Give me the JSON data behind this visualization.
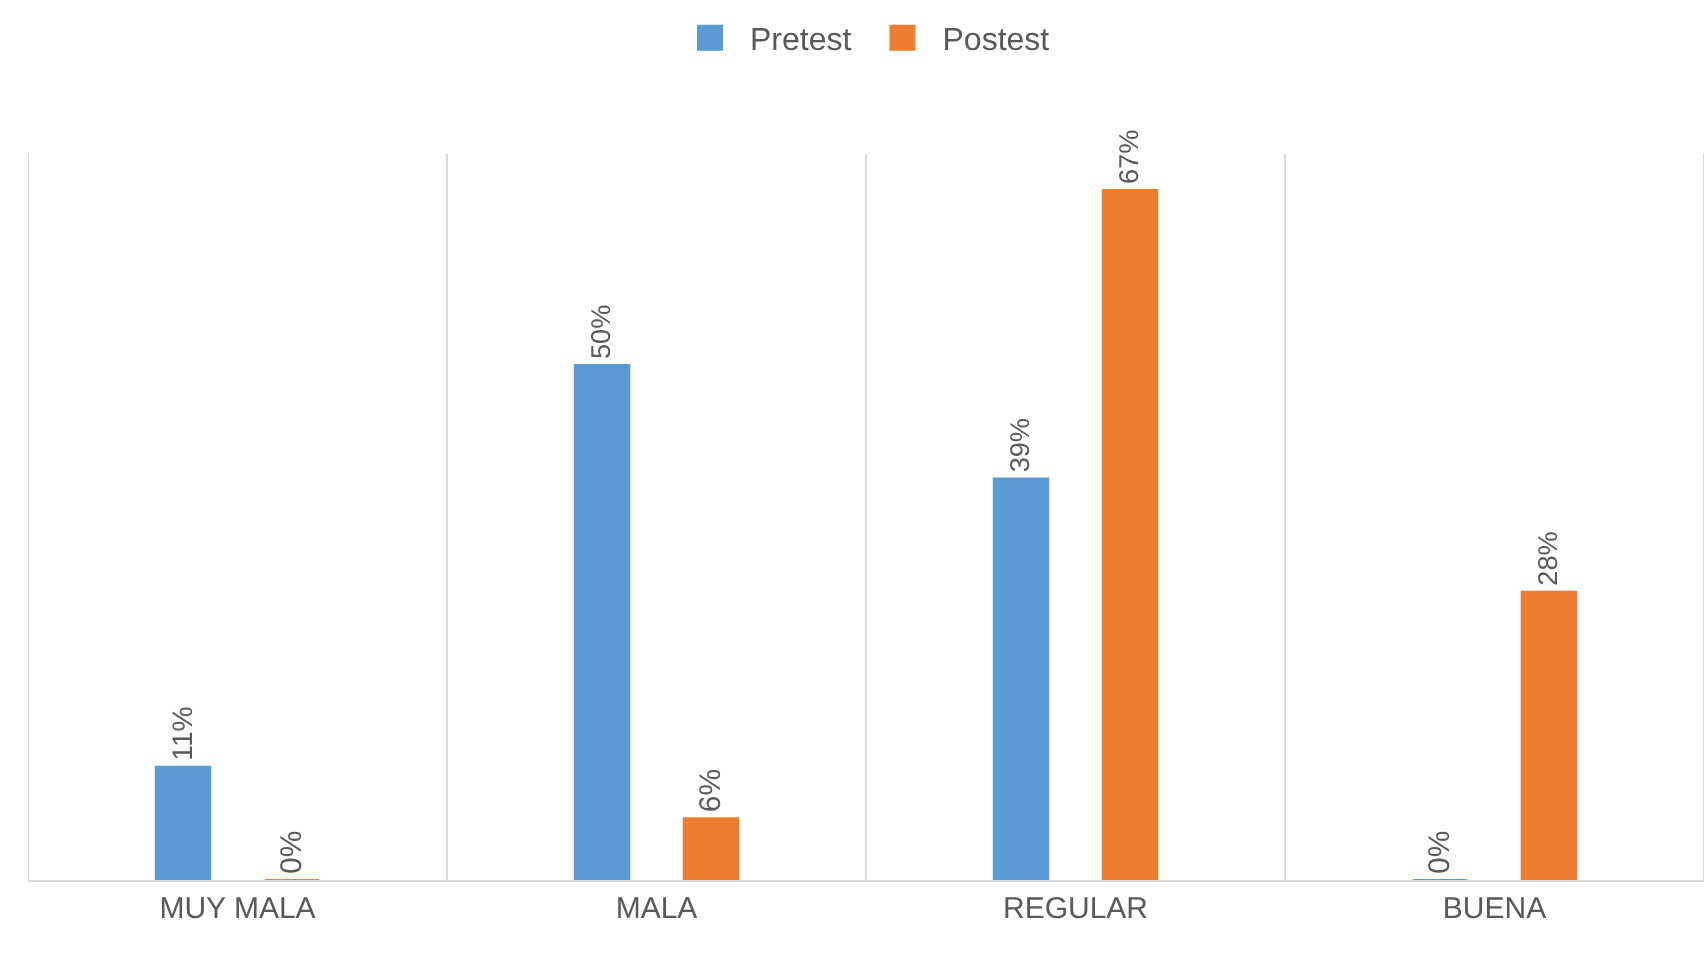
{
  "chart_data": {
    "type": "bar",
    "categories": [
      "MUY MALA",
      "MALA",
      "REGULAR",
      "BUENA"
    ],
    "series": [
      {
        "name": "Pretest",
        "color": "#5b9bd5",
        "values": [
          11,
          50,
          39,
          0
        ],
        "value_labels": [
          "11%",
          "50%",
          "39%",
          "0%"
        ]
      },
      {
        "name": "Postest",
        "color": "#ed7d31",
        "values": [
          0,
          6,
          67,
          28
        ],
        "value_labels": [
          "0%",
          "6%",
          "67%",
          "28%"
        ]
      }
    ],
    "ylim": [
      0,
      70.5
    ],
    "grid": "x",
    "legend": "top",
    "tick_labels": "x"
  }
}
